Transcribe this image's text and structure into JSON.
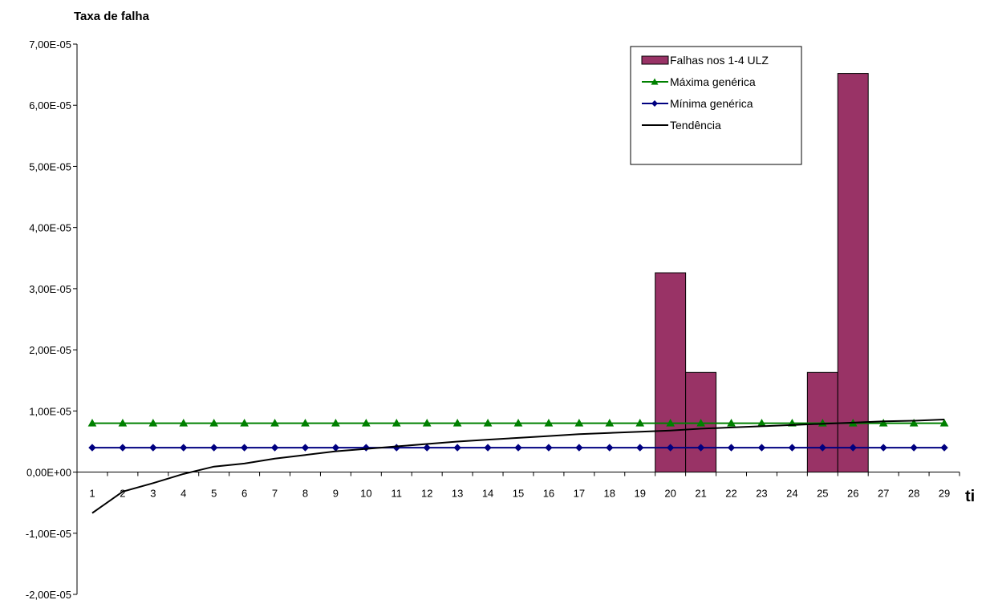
{
  "chart_data": {
    "type": "bar",
    "ylabel": "Taxa de falha",
    "xlabel": "ti",
    "categories": [
      "1",
      "2",
      "3",
      "4",
      "5",
      "6",
      "7",
      "8",
      "9",
      "10",
      "11",
      "12",
      "13",
      "14",
      "15",
      "16",
      "17",
      "18",
      "19",
      "20",
      "21",
      "22",
      "23",
      "24",
      "25",
      "26",
      "27",
      "28",
      "29"
    ],
    "ylim": [
      -2e-05,
      7e-05
    ],
    "y_ticks": [
      7e-05,
      6e-05,
      5e-05,
      4e-05,
      3e-05,
      2e-05,
      1e-05,
      0,
      -1e-05,
      -2e-05
    ],
    "y_tick_labels": [
      "7,00E-05",
      "6,00E-05",
      "5,00E-05",
      "4,00E-05",
      "3,00E-05",
      "2,00E-05",
      "1,00E-05",
      "0,00E+00",
      "-1,00E-05",
      "-2,00E-05"
    ],
    "grid": false,
    "legend_position": "top-right",
    "series": [
      {
        "name": "Falhas nos 1-4 ULZ",
        "kind": "bar",
        "color": "#993366",
        "values": [
          0,
          0,
          0,
          0,
          0,
          0,
          0,
          0,
          0,
          0,
          0,
          0,
          0,
          0,
          0,
          0,
          0,
          0,
          0,
          3.26e-05,
          1.63e-05,
          0,
          0,
          0,
          1.63e-05,
          6.52e-05,
          0,
          0,
          0
        ]
      },
      {
        "name": "Máxima genérica",
        "kind": "line",
        "marker": "triangle",
        "color": "#008000",
        "values": [
          8e-06,
          8e-06,
          8e-06,
          8e-06,
          8e-06,
          8e-06,
          8e-06,
          8e-06,
          8e-06,
          8e-06,
          8e-06,
          8e-06,
          8e-06,
          8e-06,
          8e-06,
          8e-06,
          8e-06,
          8e-06,
          8e-06,
          8e-06,
          8e-06,
          8e-06,
          8e-06,
          8e-06,
          8e-06,
          8e-06,
          8e-06,
          8e-06,
          8e-06
        ]
      },
      {
        "name": "Mínima genérica",
        "kind": "line",
        "marker": "diamond",
        "color": "#000080",
        "values": [
          4e-06,
          4e-06,
          4e-06,
          4e-06,
          4e-06,
          4e-06,
          4e-06,
          4e-06,
          4e-06,
          4e-06,
          4e-06,
          4e-06,
          4e-06,
          4e-06,
          4e-06,
          4e-06,
          4e-06,
          4e-06,
          4e-06,
          4e-06,
          4e-06,
          4e-06,
          4e-06,
          4e-06,
          4e-06,
          4e-06,
          4e-06,
          4e-06,
          4e-06
        ]
      },
      {
        "name": "Tendência",
        "kind": "line",
        "marker": "none",
        "color": "#000000",
        "values": [
          -6.7e-06,
          -3.2e-06,
          -1.8e-06,
          -3e-07,
          9e-07,
          1.4e-06,
          2.2e-06,
          2.8e-06,
          3.4e-06,
          3.8e-06,
          4.2e-06,
          4.6e-06,
          5e-06,
          5.3e-06,
          5.6e-06,
          5.9e-06,
          6.2e-06,
          6.4e-06,
          6.6e-06,
          6.8e-06,
          7.1e-06,
          7.3e-06,
          7.5e-06,
          7.7e-06,
          7.9e-06,
          8.1e-06,
          8.3e-06,
          8.4e-06,
          8.6e-06
        ]
      }
    ]
  }
}
